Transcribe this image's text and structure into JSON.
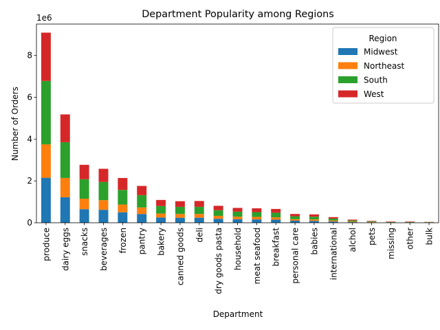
{
  "chart_data": {
    "type": "bar",
    "stacked": true,
    "title": "Department Popularity among Regions",
    "xlabel": "Department",
    "ylabel": "Number of Orders",
    "y_scale_label": "1e6",
    "ylim": [
      0,
      9.5
    ],
    "y_unit_multiplier": 1000000,
    "yticks": [
      0,
      2,
      4,
      6,
      8
    ],
    "ytick_labels": [
      "0",
      "2",
      "4",
      "6",
      "8"
    ],
    "grid": false,
    "legend": {
      "title": "Region",
      "placement": "top-right"
    },
    "categories": [
      "produce",
      "dairy eggs",
      "snacks",
      "beverages",
      "frozen",
      "pantry",
      "bakery",
      "canned goods",
      "deli",
      "dry goods pasta",
      "household",
      "meat seafood",
      "breakfast",
      "personal care",
      "babies",
      "international",
      "alchol",
      "pets",
      "missing",
      "other",
      "bulk"
    ],
    "series": [
      {
        "name": "Midwest",
        "color": "#1f77b4",
        "values": [
          2.15,
          1.22,
          0.65,
          0.62,
          0.5,
          0.42,
          0.25,
          0.24,
          0.24,
          0.19,
          0.17,
          0.16,
          0.15,
          0.1,
          0.09,
          0.06,
          0.03,
          0.02,
          0.01,
          0.01,
          0.01
        ]
      },
      {
        "name": "Northeast",
        "color": "#ff7f0e",
        "values": [
          1.6,
          0.92,
          0.5,
          0.46,
          0.37,
          0.31,
          0.19,
          0.18,
          0.18,
          0.14,
          0.12,
          0.12,
          0.11,
          0.07,
          0.07,
          0.05,
          0.03,
          0.02,
          0.01,
          0.01,
          0.01
        ]
      },
      {
        "name": "South",
        "color": "#2ca02c",
        "values": [
          3.03,
          1.71,
          0.93,
          0.87,
          0.7,
          0.59,
          0.36,
          0.34,
          0.34,
          0.27,
          0.24,
          0.23,
          0.22,
          0.14,
          0.13,
          0.09,
          0.05,
          0.03,
          0.02,
          0.02,
          0.01
        ]
      },
      {
        "name": "West",
        "color": "#d62728",
        "values": [
          2.31,
          1.33,
          0.69,
          0.63,
          0.57,
          0.44,
          0.29,
          0.27,
          0.28,
          0.21,
          0.18,
          0.18,
          0.18,
          0.11,
          0.11,
          0.07,
          0.04,
          0.02,
          0.02,
          0.02,
          0.01
        ]
      }
    ]
  }
}
